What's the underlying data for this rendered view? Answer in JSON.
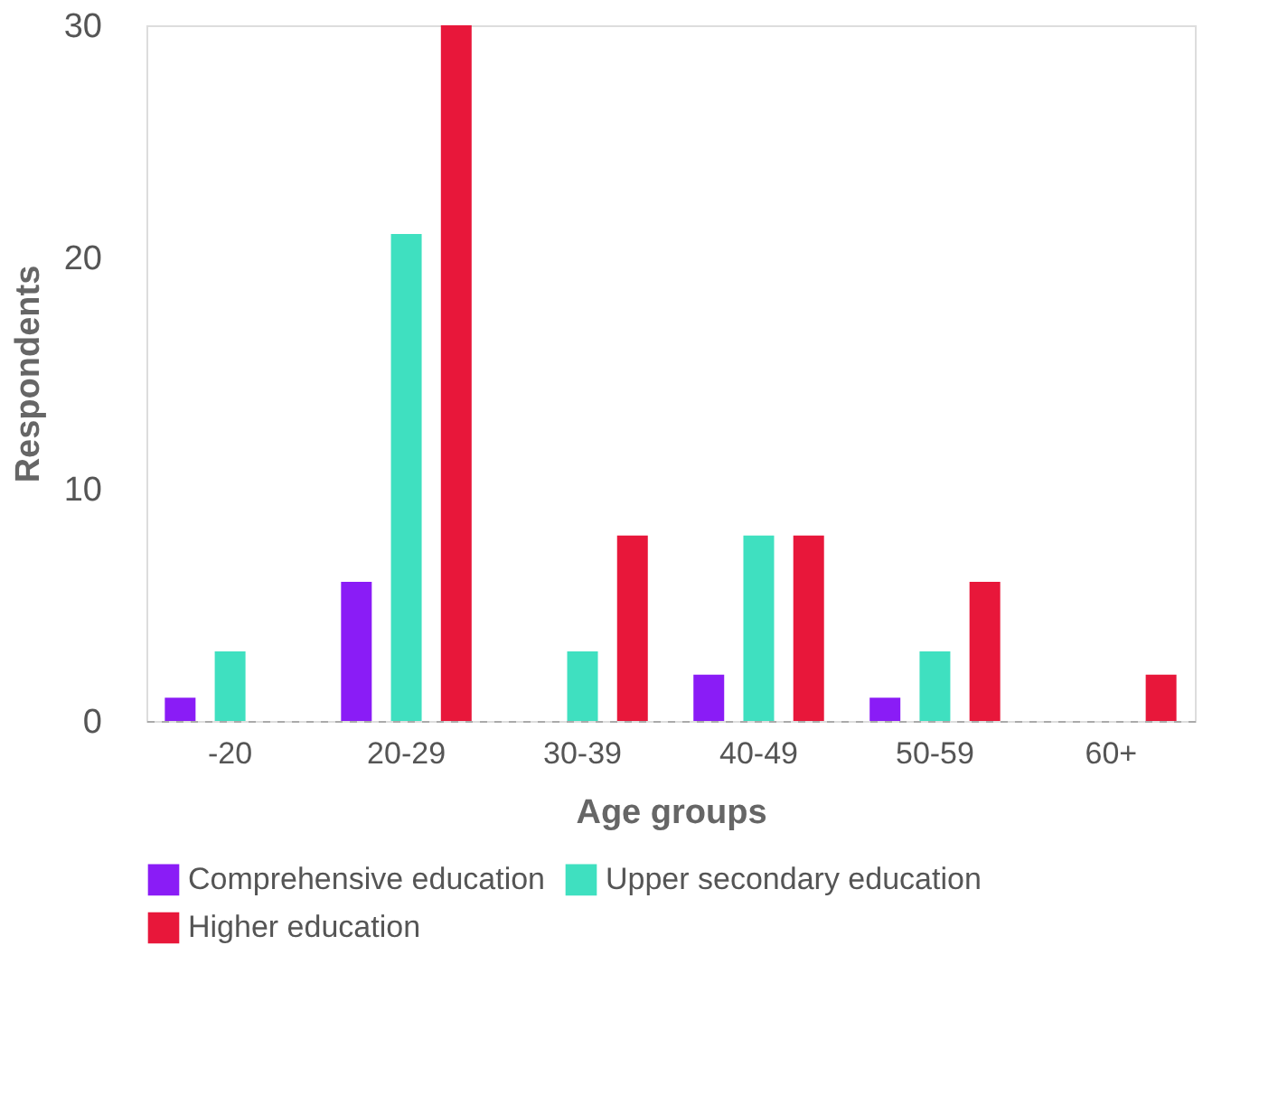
{
  "chart_data": {
    "type": "bar",
    "xlabel": "Age groups",
    "ylabel": "Respondents",
    "categories": [
      "-20",
      "20-29",
      "30-39",
      "40-49",
      "50-59",
      "60+"
    ],
    "series": [
      {
        "name": "Comprehensive education",
        "color": "#8a1cf6",
        "values": [
          1,
          6,
          0,
          2,
          1,
          0
        ]
      },
      {
        "name": "Upper secondary education",
        "color": "#3fe0c0",
        "values": [
          3,
          21,
          3,
          8,
          3,
          0
        ]
      },
      {
        "name": "Higher education",
        "color": "#e8173a",
        "values": [
          0,
          30,
          8,
          8,
          6,
          2
        ]
      }
    ],
    "ylim": [
      0,
      30
    ],
    "yticks": [
      0,
      10,
      20,
      30
    ],
    "grid": false,
    "legend": "bottom"
  }
}
